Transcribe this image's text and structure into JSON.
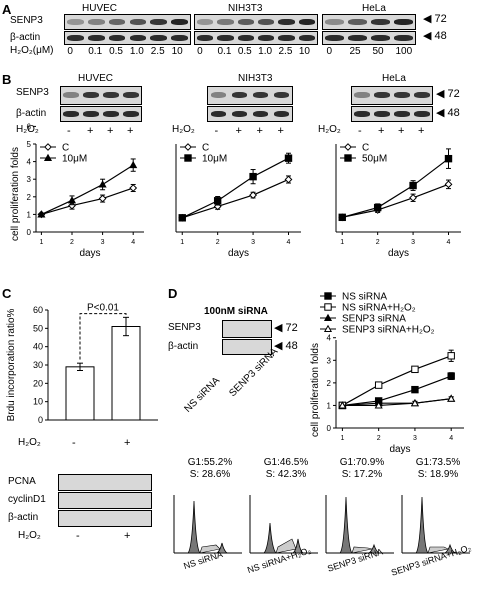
{
  "panels": {
    "A": "A",
    "B": "B",
    "C": "C",
    "D": "D"
  },
  "panelA": {
    "cells": [
      "HUVEC",
      "NIH3T3",
      "HeLa"
    ],
    "rows": [
      "SENP3",
      "β-actin"
    ],
    "dose_label": "H₂O₂(μM)",
    "doses": [
      [
        "0",
        "0.1",
        "0.5",
        "1.0",
        "2.5",
        "10"
      ],
      [
        "0",
        "0.1",
        "0.5",
        "1.0",
        "2.5",
        "10"
      ],
      [
        "0",
        "25",
        "50",
        "100"
      ]
    ],
    "mw": [
      "72",
      "48"
    ]
  },
  "panelB": {
    "cells": [
      "HUVEC",
      "NIH3T3",
      "HeLa"
    ],
    "rows": [
      "SENP3",
      "β-actin"
    ],
    "h2o2_label": "H₂O₂",
    "treat": [
      "-",
      "+",
      "+",
      "+"
    ],
    "mw": [
      "72",
      "48"
    ]
  },
  "panelC": {
    "ylabel": "Brdu incorporation ratio%",
    "pvalue": "P<0.01",
    "h2o2_label": "H₂O₂",
    "treat": [
      "-",
      "+"
    ],
    "blot_rows": [
      "PCNA",
      "cyclinD1",
      "β-actin"
    ]
  },
  "panelD": {
    "title": "100nM siRNA",
    "rows": [
      "SENP3",
      "β-actin"
    ],
    "mw": [
      "72",
      "48"
    ],
    "lanes": [
      "NS siRNA",
      "SENP3 siRNA"
    ],
    "flow": [
      {
        "g1": "G1:55.2%",
        "s": "S: 28.6%",
        "label": "NS siRNA"
      },
      {
        "g1": "G1:46.5%",
        "s": "S: 42.3%",
        "label": "NS siRNA+H₂O₂"
      },
      {
        "g1": "G1:70.9%",
        "s": "S: 17.2%",
        "label": "SENP3 siRNA"
      },
      {
        "g1": "G1:73.5%",
        "s": "S: 18.9%",
        "label": "SENP3 siRNA+H₂O₂"
      }
    ]
  },
  "chart_data": [
    {
      "type": "line",
      "panel": "B-HUVEC",
      "x": [
        1,
        2,
        3,
        4
      ],
      "xlabel": "days",
      "ylabel": "cell proliferation folds",
      "ylim": [
        0,
        6
      ],
      "yticks": [
        0,
        1,
        2,
        3,
        4,
        5,
        6
      ],
      "legend_position": "top-left",
      "series": [
        {
          "name": "C",
          "values": [
            1.0,
            1.5,
            1.9,
            2.5
          ],
          "marker": "open-diamond"
        },
        {
          "name": "10μM",
          "values": [
            1.0,
            1.8,
            2.7,
            3.8
          ],
          "marker": "filled-triangle"
        }
      ]
    },
    {
      "type": "line",
      "panel": "B-NIH3T3",
      "x": [
        1,
        2,
        3,
        4
      ],
      "xlabel": "days",
      "ylim": [
        0,
        6
      ],
      "legend_position": "top-left",
      "series": [
        {
          "name": "C",
          "values": [
            1.0,
            1.8,
            2.6,
            3.7
          ],
          "marker": "open-diamond"
        },
        {
          "name": "10μM",
          "values": [
            1.0,
            2.2,
            3.9,
            5.2
          ],
          "marker": "filled-square"
        }
      ]
    },
    {
      "type": "line",
      "panel": "B-HeLa",
      "x": [
        1,
        2,
        3,
        4
      ],
      "xlabel": "days",
      "ylim": [
        0,
        7
      ],
      "legend_position": "top-left",
      "series": [
        {
          "name": "C",
          "values": [
            1.2,
            1.8,
            2.8,
            3.9
          ],
          "marker": "open-diamond"
        },
        {
          "name": "50μM",
          "values": [
            1.2,
            2.0,
            3.8,
            6.0
          ],
          "marker": "filled-square"
        }
      ]
    },
    {
      "type": "bar",
      "panel": "C",
      "categories": [
        "-",
        "+"
      ],
      "values": [
        29,
        51
      ],
      "errors": [
        2,
        5
      ],
      "yticks": [
        0,
        10,
        20,
        30,
        40,
        50,
        60
      ],
      "ylim": [
        0,
        60
      ]
    },
    {
      "type": "line",
      "panel": "D",
      "x": [
        1,
        2,
        3,
        4
      ],
      "xlabel": "days",
      "ylabel": "cell proliferation folds",
      "ylim": [
        0,
        4
      ],
      "yticks": [
        0,
        1,
        2,
        3,
        4
      ],
      "legend_position": "top",
      "series": [
        {
          "name": "NS siRNA",
          "values": [
            1.0,
            1.2,
            1.7,
            2.3
          ],
          "marker": "filled-square"
        },
        {
          "name": "NS siRNA+H₂O₂",
          "values": [
            1.0,
            1.9,
            2.6,
            3.2
          ],
          "marker": "open-square"
        },
        {
          "name": "SENP3 siRNA",
          "values": [
            1.0,
            1.1,
            1.1,
            1.3
          ],
          "marker": "filled-triangle"
        },
        {
          "name": "SENP3 siRNA+H₂O₂",
          "values": [
            1.0,
            1.0,
            1.1,
            1.3
          ],
          "marker": "open-triangle"
        }
      ]
    }
  ]
}
